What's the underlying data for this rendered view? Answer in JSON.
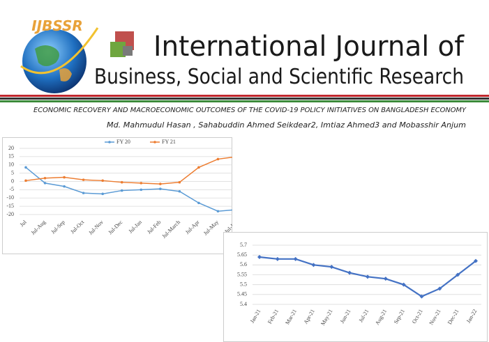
{
  "header": {
    "logo_text": "IJBSSR",
    "title_line1": "International Journal of",
    "title_line2": "Business, Social and Scientific Research"
  },
  "paper": {
    "title": "ECONOMIC RECOVERY AND MACROECONOMIC OUTCOMES OF THE COVID-19 POLICY INITIATIVES ON BANGLADESH ECONOMY",
    "authors": "Md. Mahmudul Hasan , Sahabuddin Ahmed Seikdear2, Imtiaz Ahmed3 and Mobasshir Anjum"
  },
  "chart_data": [
    {
      "type": "line",
      "categories": [
        "Jul",
        "Jul-Aug",
        "Jul-Sep",
        "Jul-Oct",
        "Jul-Nov",
        "Jul-Dec",
        "Jul-Jan",
        "Jul-Feb",
        "Jul-March",
        "Jul-Apr",
        "Jul-May",
        "Jul-Jun"
      ],
      "series": [
        {
          "name": "FY 20",
          "color": "#5b9bd5",
          "values": [
            8.5,
            -1,
            -3,
            -7,
            -7.5,
            -5.5,
            -5,
            -4.5,
            -6,
            -13,
            -18,
            -17
          ]
        },
        {
          "name": "FY 21",
          "color": "#ed7d31",
          "values": [
            0.5,
            2,
            2.5,
            1,
            0.5,
            -0.5,
            -1,
            -1.5,
            -0.5,
            8.5,
            13.5,
            15
          ]
        }
      ],
      "ylim": [
        -20,
        20
      ],
      "yticks": [
        -20,
        -15,
        -10,
        -5,
        0,
        5,
        10,
        15,
        20
      ],
      "grid": true,
      "legend": "top"
    },
    {
      "type": "line",
      "categories": [
        "Jan-21",
        "Feb-21",
        "Mar-21",
        "Apr-21",
        "May-21",
        "Jun-21",
        "Jul-21",
        "Aug-21",
        "Sep-21",
        "Oct-21",
        "Nov-21",
        "Dec-21",
        "Jan-22"
      ],
      "values": [
        5.64,
        5.63,
        5.63,
        5.6,
        5.59,
        5.56,
        5.54,
        5.53,
        5.5,
        5.44,
        5.48,
        5.55,
        5.62
      ],
      "color": "#4472c4",
      "ylim": [
        5.4,
        5.7
      ],
      "yticks": [
        5.4,
        5.45,
        5.5,
        5.55,
        5.6,
        5.65,
        5.7
      ],
      "grid": true
    }
  ]
}
